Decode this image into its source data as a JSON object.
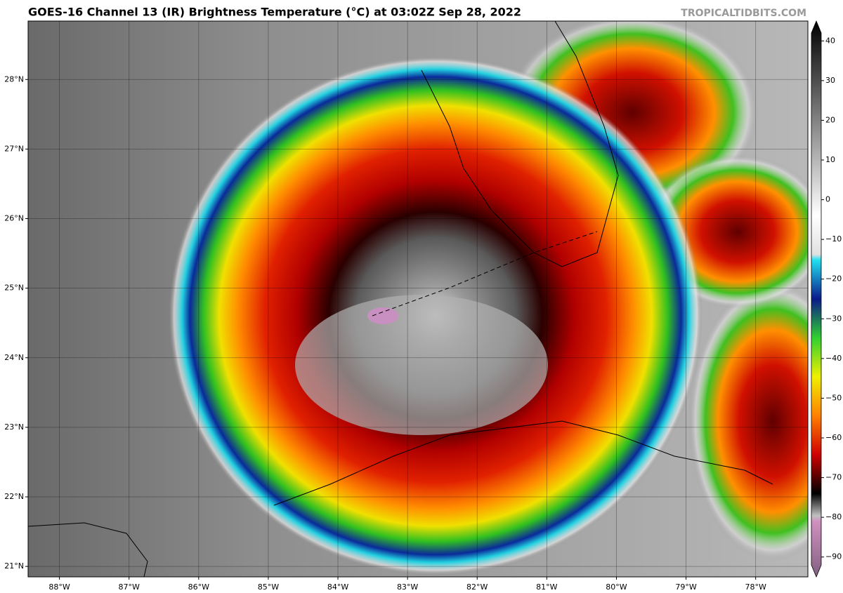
{
  "header": {
    "title": "GOES-16 Channel 13 (IR) Brightness Temperature (°C) at 03:02Z Sep 28, 2022",
    "watermark": "TROPICALTIDBITS.COM"
  },
  "map": {
    "xlim": [
      -88.45,
      -77.25
    ],
    "ylim": [
      20.85,
      28.84
    ],
    "xticks": [
      {
        "value": -88,
        "label": "88°W"
      },
      {
        "value": -87,
        "label": "87°W"
      },
      {
        "value": -86,
        "label": "86°W"
      },
      {
        "value": -85,
        "label": "85°W"
      },
      {
        "value": -84,
        "label": "84°W"
      },
      {
        "value": -83,
        "label": "83°W"
      },
      {
        "value": -82,
        "label": "82°W"
      },
      {
        "value": -81,
        "label": "81°W"
      },
      {
        "value": -80,
        "label": "80°W"
      },
      {
        "value": -79,
        "label": "79°W"
      },
      {
        "value": -78,
        "label": "78°W"
      }
    ],
    "yticks": [
      {
        "value": 21,
        "label": "21°N"
      },
      {
        "value": 22,
        "label": "22°N"
      },
      {
        "value": 23,
        "label": "23°N"
      },
      {
        "value": 24,
        "label": "24°N"
      },
      {
        "value": 25,
        "label": "25°N"
      },
      {
        "value": 26,
        "label": "26°N"
      },
      {
        "value": 27,
        "label": "27°N"
      },
      {
        "value": 28,
        "label": "28°N"
      }
    ],
    "grid": true
  },
  "colorbar": {
    "clim": [
      -95,
      45
    ],
    "ticks": [
      {
        "value": 40,
        "label": "40"
      },
      {
        "value": 30,
        "label": "30"
      },
      {
        "value": 20,
        "label": "20"
      },
      {
        "value": 10,
        "label": "10"
      },
      {
        "value": 0,
        "label": "0"
      },
      {
        "value": -10,
        "label": "−10"
      },
      {
        "value": -20,
        "label": "−20"
      },
      {
        "value": -30,
        "label": "−30"
      },
      {
        "value": -40,
        "label": "−40"
      },
      {
        "value": -50,
        "label": "−50"
      },
      {
        "value": -60,
        "label": "−60"
      },
      {
        "value": -70,
        "label": "−70"
      },
      {
        "value": -80,
        "label": "−80"
      },
      {
        "value": -90,
        "label": "−90"
      }
    ]
  }
}
